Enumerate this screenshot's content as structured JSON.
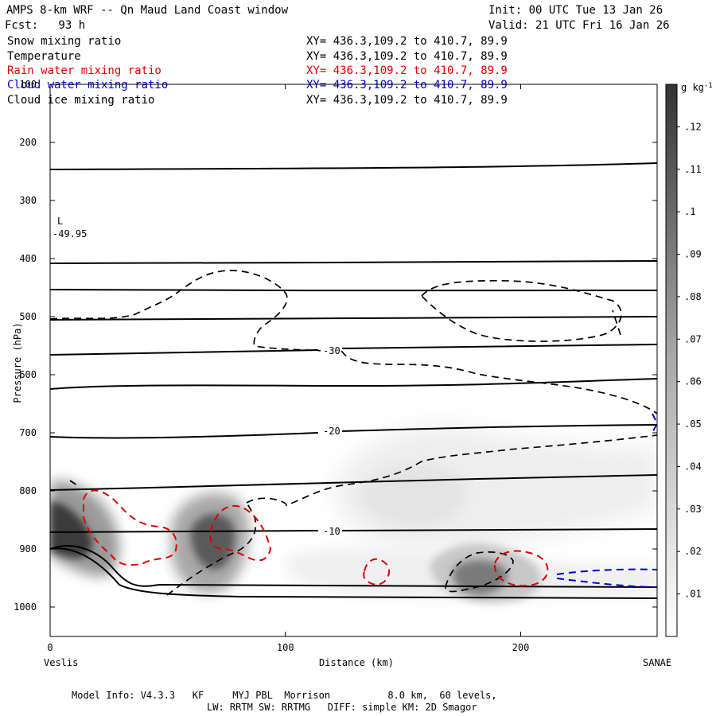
{
  "header": {
    "title": "AMPS 8-km WRF -- Qn Maud Land Coast window",
    "init": "Init: 00 UTC Tue 13 Jan 26",
    "fcst": "Fcst:   93 h",
    "valid": "Valid: 21 UTC Fri 16 Jan 26"
  },
  "fields": [
    {
      "name": "Snow mixing ratio",
      "xy": "XY= 436.3,109.2 to 410.7, 89.9",
      "color": "#000000"
    },
    {
      "name": "Temperature",
      "xy": "XY= 436.3,109.2 to 410.7, 89.9",
      "color": "#000000"
    },
    {
      "name": "Rain water mixing ratio",
      "xy": "XY= 436.3,109.2 to 410.7, 89.9",
      "color": "#e00000"
    },
    {
      "name": "Cloud water mixing ratio",
      "xy": "XY= 436.3,109.2 to 410.7, 89.9",
      "color": "#0000cc"
    },
    {
      "name": "Cloud ice mixing ratio",
      "xy": "XY= 436.3,109.2 to 410.7, 89.9",
      "color": "#000000"
    }
  ],
  "chart_data": {
    "type": "cross-section",
    "xlabel": "Distance (km)",
    "ylabel": "Pressure (hPa)",
    "xlim": [
      0,
      258
    ],
    "ylim": [
      1050,
      100
    ],
    "x_ticks": [
      0,
      100,
      200
    ],
    "y_ticks": [
      100,
      200,
      300,
      400,
      500,
      600,
      700,
      800,
      900,
      1000
    ],
    "left_endpoint": "Veslis",
    "right_endpoint": "SANAE",
    "min_label": "L",
    "min_value": "-49.95",
    "temperature_labels": [
      "-30",
      "-20",
      "-10"
    ],
    "colorbar": {
      "unit": "g kg",
      "unit_exponent": "-1",
      "levels": [
        ".01",
        ".02",
        ".03",
        ".04",
        ".05",
        ".06",
        ".07",
        ".08",
        ".09",
        ".1",
        ".11",
        ".12"
      ]
    }
  },
  "footer": {
    "line1": "Model Info: V4.3.3   KF     MYJ PBL  Morrison          8.0 km,  60 levels,",
    "line2": "LW: RRTM SW: RRTMG   DIFF: simple KM: 2D Smagor"
  }
}
